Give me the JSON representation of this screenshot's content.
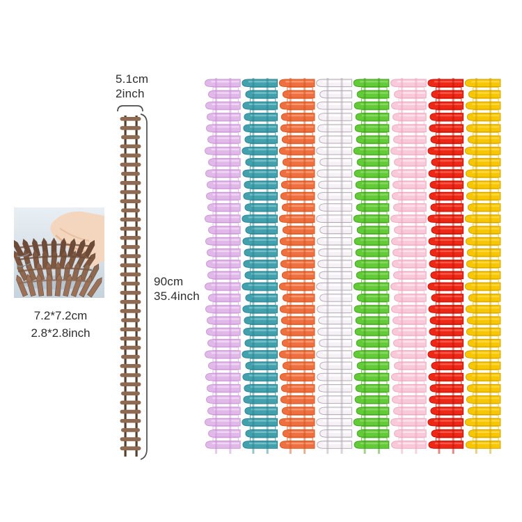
{
  "page": {
    "background": "#ffffff"
  },
  "photo": {
    "caption_line1": "7.2*7.2cm",
    "caption_line2": "2.8*2.8inch",
    "bg_top": "#e9eff4",
    "bg_bottom": "#c6d3dd",
    "fence_shades": [
      "#6e4b38",
      "#7d573f",
      "#8d6850",
      "#9b7258"
    ],
    "hand_color": "#f4d6be",
    "hand_shadow": "#e2b897"
  },
  "ruler": {
    "width_line1": "5.1cm",
    "width_line2": "2inch",
    "length_line1": "90cm",
    "length_line2": "35.4inch",
    "slat_color": "#8e6a53",
    "rail_color": "#56402f",
    "bracket_color": "#4b4b4b"
  },
  "strips": {
    "picket_rows": 33,
    "colors": [
      {
        "name": "lilac",
        "body": "#e0b9e8",
        "dark": "#c993d6",
        "light": "#f2d9f6"
      },
      {
        "name": "teal",
        "body": "#43a0ad",
        "dark": "#2a8491",
        "light": "#7cc5cd"
      },
      {
        "name": "orange",
        "body": "#ee7040",
        "dark": "#d6551f",
        "light": "#f79d76"
      },
      {
        "name": "white",
        "body": "#f5f1f5",
        "dark": "#b0a6b1",
        "light": "#ffffff"
      },
      {
        "name": "green",
        "body": "#63ca38",
        "dark": "#3f9e1c",
        "light": "#8eda68"
      },
      {
        "name": "pink",
        "body": "#f8c9d9",
        "dark": "#efa5be",
        "light": "#fde6ee"
      },
      {
        "name": "red",
        "body": "#ee2817",
        "dark": "#c11005",
        "light": "#f6604f"
      },
      {
        "name": "yellow",
        "body": "#f6c702",
        "dark": "#d29f00",
        "light": "#ffd94a"
      }
    ]
  }
}
